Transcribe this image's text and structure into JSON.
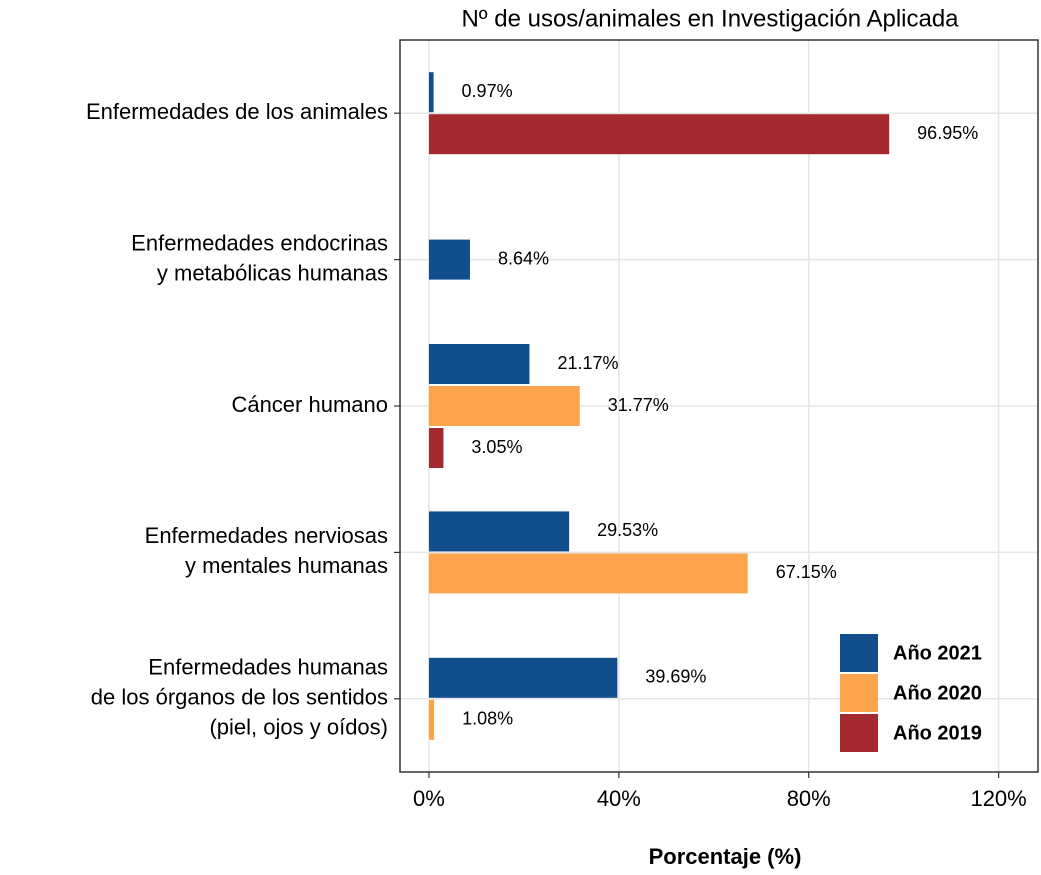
{
  "chart_data": {
    "type": "bar",
    "orientation": "horizontal",
    "title": "Nº de usos/animales en Investigación Aplicada",
    "x_label": "Porcentaje (%)",
    "categories": [
      [
        "Enfermedades de los animales"
      ],
      [
        "Enfermedades endocrinas",
        "y metabólicas humanas"
      ],
      [
        "Cáncer humano"
      ],
      [
        "Enfermedades nerviosas",
        "y mentales humanas"
      ],
      [
        "Enfermedades humanas",
        "de los órganos de los sentidos",
        "(piel, ojos y oídos)"
      ]
    ],
    "series": [
      {
        "name": "Año 2021",
        "color": "#114e8b",
        "values": [
          0.97,
          8.64,
          21.17,
          29.53,
          39.69
        ],
        "value_labels": [
          "0.97%",
          "8.64%",
          "21.17%",
          "29.53%",
          "39.69%"
        ]
      },
      {
        "name": "Año 2020",
        "color": "#fca44c",
        "values": [
          null,
          null,
          31.77,
          67.15,
          1.08
        ],
        "value_labels": [
          null,
          null,
          "31.77%",
          "67.15%",
          "1.08%"
        ]
      },
      {
        "name": "Año 2019",
        "color": "#a4292e",
        "values": [
          96.95,
          null,
          3.05,
          null,
          null
        ],
        "value_labels": [
          "96.95%",
          null,
          "3.05%",
          null,
          null
        ]
      }
    ],
    "xlim": [
      -6.1,
      128.3
    ],
    "xticks": [
      {
        "value": 0,
        "label": "0%"
      },
      {
        "value": 40,
        "label": "40%"
      },
      {
        "value": 80,
        "label": "80%"
      },
      {
        "value": 120,
        "label": "120%"
      }
    ],
    "grid": true,
    "legend": "bottom-right"
  }
}
